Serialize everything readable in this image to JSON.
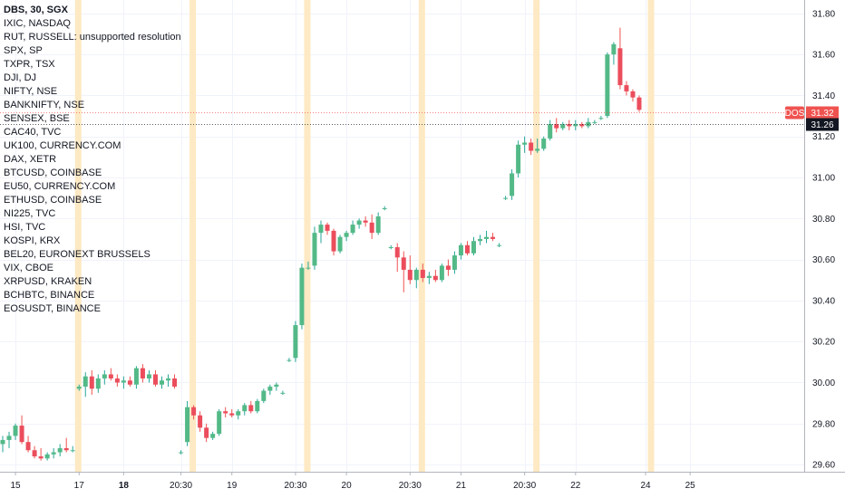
{
  "legend_overlay": {
    "title": "DBS, 30, SGX",
    "symbols": [
      "IXIC, NASDAQ",
      "RUT, RUSSELL: unsupported resolution",
      "SPX, SP",
      "TXPR, TSX",
      "DJI, DJ",
      "NIFTY, NSE",
      "BANKNIFTY, NSE",
      "SENSEX, BSE",
      "CAC40, TVC",
      "UK100, CURRENCY.COM",
      "DAX, XETR",
      "BTCUSD, COINBASE",
      "EU50, CURRENCY.COM",
      "ETHUSD, COINBASE",
      "NI225, TVC",
      "HSI, TVC",
      "KOSPI, KRX",
      "BEL20, EURONEXT BRUSSELS",
      "VIX, CBOE",
      "XRPUSD, KRAKEN",
      "BCHBTC, BINANCE",
      "EOSUSDT, BINANCE"
    ]
  },
  "colors": {
    "up": "#26a69a",
    "up_body": "#53b987",
    "down": "#ef5350",
    "down_body": "#eb4d5c",
    "session_band": "#fde9c3",
    "grid": "#f0f3fa",
    "axis_border": "#b2b5be",
    "price_line_red": "#ef5350",
    "price_line_dark": "#131722"
  },
  "chart_data": {
    "type": "candlestick",
    "symbol": "DBS",
    "interval": "30",
    "exchange": "SGX",
    "y_axis": {
      "ticks": [
        29.6,
        29.8,
        30.0,
        30.2,
        30.4,
        30.6,
        30.8,
        31.0,
        31.2,
        31.4,
        31.6,
        31.8
      ],
      "tick_labels": [
        "29.60",
        "29.80",
        "30.00",
        "30.20",
        "30.40",
        "30.60",
        "30.80",
        "31.00",
        "31.20",
        "31.40",
        "31.60",
        "31.80"
      ],
      "range": [
        29.53,
        31.83
      ]
    },
    "x_axis": {
      "tick_labels": [
        {
          "label": "15",
          "bar": 2
        },
        {
          "label": "17",
          "bar": 12
        },
        {
          "label": "18",
          "bar": 19
        },
        {
          "label": "20:30",
          "bar": 28
        },
        {
          "label": "19",
          "bar": 36
        },
        {
          "label": "20:30",
          "bar": 46
        },
        {
          "label": "20",
          "bar": 54
        },
        {
          "label": "20:30",
          "bar": 64
        },
        {
          "label": "21",
          "bar": 72
        },
        {
          "label": "20:30",
          "bar": 82
        },
        {
          "label": "22",
          "bar": 90
        },
        {
          "label": "24",
          "bar": 101
        },
        {
          "label": "25",
          "bar": 108
        }
      ]
    },
    "session_starts": [
      12,
      30,
      48,
      66,
      84,
      102
    ],
    "price_labels": [
      {
        "label": "DOS",
        "value": "31.32",
        "style": "red"
      },
      {
        "label": "",
        "value": "31.26",
        "style": "dark"
      }
    ],
    "candles": [
      {
        "o": 29.7,
        "h": 29.74,
        "l": 29.66,
        "c": 29.72
      },
      {
        "o": 29.72,
        "h": 29.76,
        "l": 29.68,
        "c": 29.74
      },
      {
        "o": 29.74,
        "h": 29.8,
        "l": 29.72,
        "c": 29.79
      },
      {
        "o": 29.79,
        "h": 29.84,
        "l": 29.7,
        "c": 29.71
      },
      {
        "o": 29.71,
        "h": 29.74,
        "l": 29.66,
        "c": 29.67
      },
      {
        "o": 29.67,
        "h": 29.69,
        "l": 29.63,
        "c": 29.64
      },
      {
        "o": 29.64,
        "h": 29.68,
        "l": 29.62,
        "c": 29.63
      },
      {
        "o": 29.63,
        "h": 29.66,
        "l": 29.62,
        "c": 29.65
      },
      {
        "o": 29.65,
        "h": 29.68,
        "l": 29.63,
        "c": 29.66
      },
      {
        "o": 29.66,
        "h": 29.7,
        "l": 29.64,
        "c": 29.68
      },
      {
        "o": 29.68,
        "h": 29.73,
        "l": 29.66,
        "c": 29.67
      },
      {
        "o": 29.67,
        "h": 29.69,
        "l": 29.66,
        "c": 29.67
      },
      {
        "o": 29.97,
        "h": 29.99,
        "l": 29.96,
        "c": 29.98
      },
      {
        "o": 29.98,
        "h": 30.05,
        "l": 29.93,
        "c": 30.03
      },
      {
        "o": 30.03,
        "h": 30.06,
        "l": 29.94,
        "c": 29.97
      },
      {
        "o": 29.97,
        "h": 30.04,
        "l": 29.95,
        "c": 30.02
      },
      {
        "o": 30.02,
        "h": 30.06,
        "l": 29.99,
        "c": 30.04
      },
      {
        "o": 30.04,
        "h": 30.07,
        "l": 30.01,
        "c": 30.02
      },
      {
        "o": 30.02,
        "h": 30.04,
        "l": 29.98,
        "c": 30.0
      },
      {
        "o": 30.0,
        "h": 30.03,
        "l": 29.97,
        "c": 30.01
      },
      {
        "o": 30.01,
        "h": 30.03,
        "l": 29.98,
        "c": 29.99
      },
      {
        "o": 29.99,
        "h": 30.08,
        "l": 29.97,
        "c": 30.07
      },
      {
        "o": 30.07,
        "h": 30.09,
        "l": 30.0,
        "c": 30.02
      },
      {
        "o": 30.02,
        "h": 30.06,
        "l": 30.0,
        "c": 30.04
      },
      {
        "o": 30.04,
        "h": 30.06,
        "l": 29.98,
        "c": 29.99
      },
      {
        "o": 29.99,
        "h": 30.03,
        "l": 29.97,
        "c": 30.01
      },
      {
        "o": 30.01,
        "h": 30.04,
        "l": 29.98,
        "c": 30.02
      },
      {
        "o": 30.02,
        "h": 30.04,
        "l": 29.97,
        "c": 29.98
      },
      {
        "o": 29.66,
        "h": 29.67,
        "l": 29.65,
        "c": 29.66
      },
      {
        "o": 29.71,
        "h": 29.91,
        "l": 29.69,
        "c": 29.88
      },
      {
        "o": 29.88,
        "h": 29.89,
        "l": 29.82,
        "c": 29.84
      },
      {
        "o": 29.84,
        "h": 29.86,
        "l": 29.76,
        "c": 29.78
      },
      {
        "o": 29.78,
        "h": 29.8,
        "l": 29.71,
        "c": 29.73
      },
      {
        "o": 29.73,
        "h": 29.76,
        "l": 29.72,
        "c": 29.75
      },
      {
        "o": 29.75,
        "h": 29.87,
        "l": 29.74,
        "c": 29.86
      },
      {
        "o": 29.86,
        "h": 29.88,
        "l": 29.83,
        "c": 29.85
      },
      {
        "o": 29.85,
        "h": 29.87,
        "l": 29.83,
        "c": 29.84
      },
      {
        "o": 29.84,
        "h": 29.87,
        "l": 29.82,
        "c": 29.86
      },
      {
        "o": 29.86,
        "h": 29.9,
        "l": 29.84,
        "c": 29.89
      },
      {
        "o": 29.89,
        "h": 29.91,
        "l": 29.85,
        "c": 29.86
      },
      {
        "o": 29.86,
        "h": 29.92,
        "l": 29.85,
        "c": 29.91
      },
      {
        "o": 29.91,
        "h": 29.97,
        "l": 29.9,
        "c": 29.96
      },
      {
        "o": 29.96,
        "h": 29.99,
        "l": 29.94,
        "c": 29.98
      },
      {
        "o": 29.98,
        "h": 30.0,
        "l": 29.96,
        "c": 29.99
      },
      {
        "o": 29.95,
        "h": 29.96,
        "l": 29.94,
        "c": 29.95
      },
      {
        "o": 30.11,
        "h": 30.12,
        "l": 30.1,
        "c": 30.11
      },
      {
        "o": 30.12,
        "h": 30.3,
        "l": 30.1,
        "c": 30.28
      },
      {
        "o": 30.28,
        "h": 30.58,
        "l": 30.26,
        "c": 30.56
      },
      {
        "o": 30.56,
        "h": 30.59,
        "l": 30.55,
        "c": 30.56
      },
      {
        "o": 30.57,
        "h": 30.76,
        "l": 30.55,
        "c": 30.73
      },
      {
        "o": 30.73,
        "h": 30.79,
        "l": 30.68,
        "c": 30.77
      },
      {
        "o": 30.77,
        "h": 30.78,
        "l": 30.72,
        "c": 30.74
      },
      {
        "o": 30.74,
        "h": 30.75,
        "l": 30.62,
        "c": 30.64
      },
      {
        "o": 30.64,
        "h": 30.72,
        "l": 30.63,
        "c": 30.71
      },
      {
        "o": 30.71,
        "h": 30.74,
        "l": 30.69,
        "c": 30.73
      },
      {
        "o": 30.73,
        "h": 30.79,
        "l": 30.72,
        "c": 30.77
      },
      {
        "o": 30.77,
        "h": 30.8,
        "l": 30.75,
        "c": 30.79
      },
      {
        "o": 30.79,
        "h": 30.81,
        "l": 30.76,
        "c": 30.78
      },
      {
        "o": 30.78,
        "h": 30.82,
        "l": 30.7,
        "c": 30.73
      },
      {
        "o": 30.73,
        "h": 30.83,
        "l": 30.72,
        "c": 30.81
      },
      {
        "o": 30.85,
        "h": 30.86,
        "l": 30.84,
        "c": 30.85
      },
      {
        "o": 30.66,
        "h": 30.67,
        "l": 30.65,
        "c": 30.66
      },
      {
        "o": 30.66,
        "h": 30.68,
        "l": 30.54,
        "c": 30.61
      },
      {
        "o": 30.61,
        "h": 30.64,
        "l": 30.44,
        "c": 30.55
      },
      {
        "o": 30.55,
        "h": 30.62,
        "l": 30.48,
        "c": 30.5
      },
      {
        "o": 30.5,
        "h": 30.56,
        "l": 30.46,
        "c": 30.55
      },
      {
        "o": 30.55,
        "h": 30.58,
        "l": 30.49,
        "c": 30.51
      },
      {
        "o": 30.51,
        "h": 30.54,
        "l": 30.48,
        "c": 30.52
      },
      {
        "o": 30.52,
        "h": 30.55,
        "l": 30.49,
        "c": 30.5
      },
      {
        "o": 30.5,
        "h": 30.58,
        "l": 30.49,
        "c": 30.57
      },
      {
        "o": 30.57,
        "h": 30.6,
        "l": 30.52,
        "c": 30.55
      },
      {
        "o": 30.55,
        "h": 30.64,
        "l": 30.53,
        "c": 30.62
      },
      {
        "o": 30.62,
        "h": 30.68,
        "l": 30.6,
        "c": 30.67
      },
      {
        "o": 30.67,
        "h": 30.69,
        "l": 30.62,
        "c": 30.63
      },
      {
        "o": 30.63,
        "h": 30.71,
        "l": 30.62,
        "c": 30.69
      },
      {
        "o": 30.69,
        "h": 30.72,
        "l": 30.67,
        "c": 30.7
      },
      {
        "o": 30.7,
        "h": 30.74,
        "l": 30.68,
        "c": 30.71
      },
      {
        "o": 30.71,
        "h": 30.73,
        "l": 30.69,
        "c": 30.7
      },
      {
        "o": 30.67,
        "h": 30.68,
        "l": 30.66,
        "c": 30.67
      },
      {
        "o": 30.9,
        "h": 30.91,
        "l": 30.89,
        "c": 30.9
      },
      {
        "o": 30.91,
        "h": 31.04,
        "l": 30.89,
        "c": 31.02
      },
      {
        "o": 31.02,
        "h": 31.18,
        "l": 31.0,
        "c": 31.16
      },
      {
        "o": 31.16,
        "h": 31.2,
        "l": 31.12,
        "c": 31.17
      },
      {
        "o": 31.17,
        "h": 31.19,
        "l": 31.11,
        "c": 31.13
      },
      {
        "o": 31.13,
        "h": 31.19,
        "l": 31.12,
        "c": 31.14
      },
      {
        "o": 31.14,
        "h": 31.2,
        "l": 31.13,
        "c": 31.19
      },
      {
        "o": 31.19,
        "h": 31.28,
        "l": 31.18,
        "c": 31.26
      },
      {
        "o": 31.26,
        "h": 31.29,
        "l": 31.22,
        "c": 31.24
      },
      {
        "o": 31.24,
        "h": 31.27,
        "l": 31.23,
        "c": 31.26
      },
      {
        "o": 31.26,
        "h": 31.28,
        "l": 31.23,
        "c": 31.25
      },
      {
        "o": 31.25,
        "h": 31.28,
        "l": 31.23,
        "c": 31.26
      },
      {
        "o": 31.26,
        "h": 31.27,
        "l": 31.24,
        "c": 31.25
      },
      {
        "o": 31.25,
        "h": 31.29,
        "l": 31.24,
        "c": 31.27
      },
      {
        "o": 31.27,
        "h": 31.28,
        "l": 31.26,
        "c": 31.27
      },
      {
        "o": 31.29,
        "h": 31.3,
        "l": 31.28,
        "c": 31.29
      },
      {
        "o": 31.3,
        "h": 31.61,
        "l": 31.29,
        "c": 31.6
      },
      {
        "o": 31.6,
        "h": 31.66,
        "l": 31.55,
        "c": 31.65
      },
      {
        "o": 31.63,
        "h": 31.73,
        "l": 31.43,
        "c": 31.45
      },
      {
        "o": 31.45,
        "h": 31.47,
        "l": 31.4,
        "c": 31.42
      },
      {
        "o": 31.42,
        "h": 31.43,
        "l": 31.37,
        "c": 31.39
      },
      {
        "o": 31.39,
        "h": 31.4,
        "l": 31.32,
        "c": 31.33
      }
    ]
  }
}
